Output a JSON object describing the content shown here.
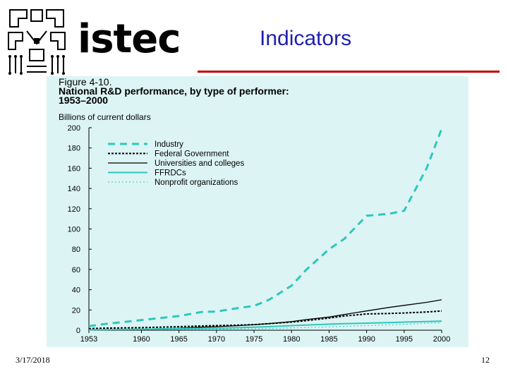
{
  "header": {
    "logo_text": "istec",
    "slide_title": "Indicators"
  },
  "footer": {
    "date": "3/17/2018",
    "page_number": "12"
  },
  "colors": {
    "title_blue": "#1f1fae",
    "rule_red": "#c00000",
    "panel_bg": "#ddf4f4",
    "teal": "#2cc8bc",
    "black": "#000000"
  },
  "chart_data": {
    "type": "line",
    "figure_label": "Figure 4-10.",
    "title": "National R&D performance, by type of performer:",
    "title_years": "1953–2000",
    "ylabel": "Billions of current dollars",
    "xlabel": "",
    "ylim": [
      0,
      200
    ],
    "xlim": [
      1953,
      2000
    ],
    "y_ticks": [
      0,
      20,
      40,
      60,
      80,
      100,
      120,
      140,
      160,
      180,
      200
    ],
    "x_ticks": [
      1953,
      1960,
      1965,
      1970,
      1975,
      1980,
      1985,
      1990,
      1995,
      2000
    ],
    "legend_position": "top-left",
    "grid": false,
    "x": [
      1953,
      1955,
      1960,
      1965,
      1968,
      1970,
      1973,
      1975,
      1977,
      1980,
      1982,
      1985,
      1987,
      1990,
      1993,
      1995,
      1998,
      2000
    ],
    "series": [
      {
        "name": "Industry",
        "style": "dashed",
        "color": "#2cc8bc",
        "values": [
          4,
          6,
          10,
          14,
          18,
          18.5,
          22,
          24,
          30,
          44,
          60,
          80,
          90,
          113,
          115,
          118,
          160,
          199
        ]
      },
      {
        "name": "Federal Government",
        "style": "dotted",
        "color": "#000000",
        "values": [
          1.5,
          2,
          2.5,
          3.5,
          4.2,
          4.5,
          5,
          5.5,
          6.5,
          8,
          9.5,
          12,
          14,
          16,
          16.5,
          17,
          18,
          19
        ]
      },
      {
        "name": "Universities and colleges",
        "style": "solid",
        "color": "#000000",
        "values": [
          0.3,
          0.5,
          1,
          2,
          3,
          3.5,
          4.5,
          5.5,
          6.5,
          8.5,
          10.5,
          13,
          15.5,
          19,
          22.5,
          24.5,
          27.5,
          30
        ]
      },
      {
        "name": "FFRDCs",
        "style": "solid",
        "color": "#2cc8bc",
        "values": [
          0.4,
          0.6,
          1,
          1.5,
          1.8,
          2,
          2.5,
          3,
          3.5,
          4.5,
          5,
          6,
          6.5,
          7,
          7.5,
          8,
          8.5,
          9
        ]
      },
      {
        "name": "Nonprofit organizations",
        "style": "dotted",
        "color": "#2cc8bc",
        "values": [
          0.2,
          0.3,
          0.5,
          0.8,
          1,
          1.1,
          1.3,
          1.5,
          1.7,
          2.2,
          2.6,
          3.3,
          3.8,
          4.5,
          5.3,
          5.8,
          6.8,
          7.5
        ]
      }
    ]
  }
}
